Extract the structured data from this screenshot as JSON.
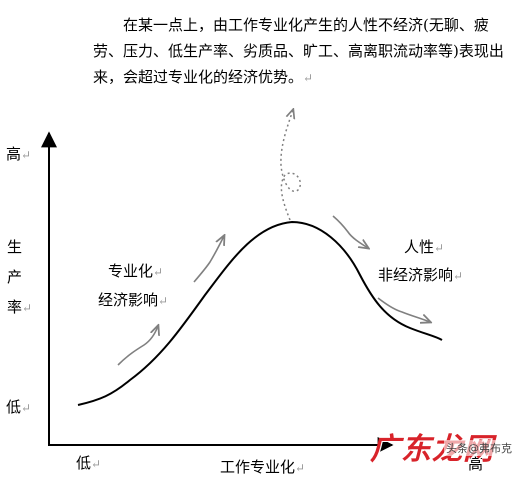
{
  "paragraph": {
    "text": "在某一点上，由工作专业化产生的人性不经济(无聊、疲劳、压力、低生产率、劣质品、旷工、高离职流动率等)表现出来，会超过专业化的经济优势。"
  },
  "return_mark": "↵",
  "y_axis": {
    "high": "高",
    "label_chars": [
      "生",
      "产",
      "率"
    ],
    "low": "低"
  },
  "x_axis": {
    "low": "低",
    "label": "工作专业化",
    "high": "高"
  },
  "annotations": {
    "left_line1": "专业化",
    "left_line2": "经济影响",
    "right_line1": "人性",
    "right_line2": "非经济影响"
  },
  "watermark": {
    "main": "广东龙网",
    "sub": "头条@弗布克"
  },
  "colors": {
    "curve": "#000000",
    "arrows": "#808080",
    "watermark": "#d8232a"
  }
}
